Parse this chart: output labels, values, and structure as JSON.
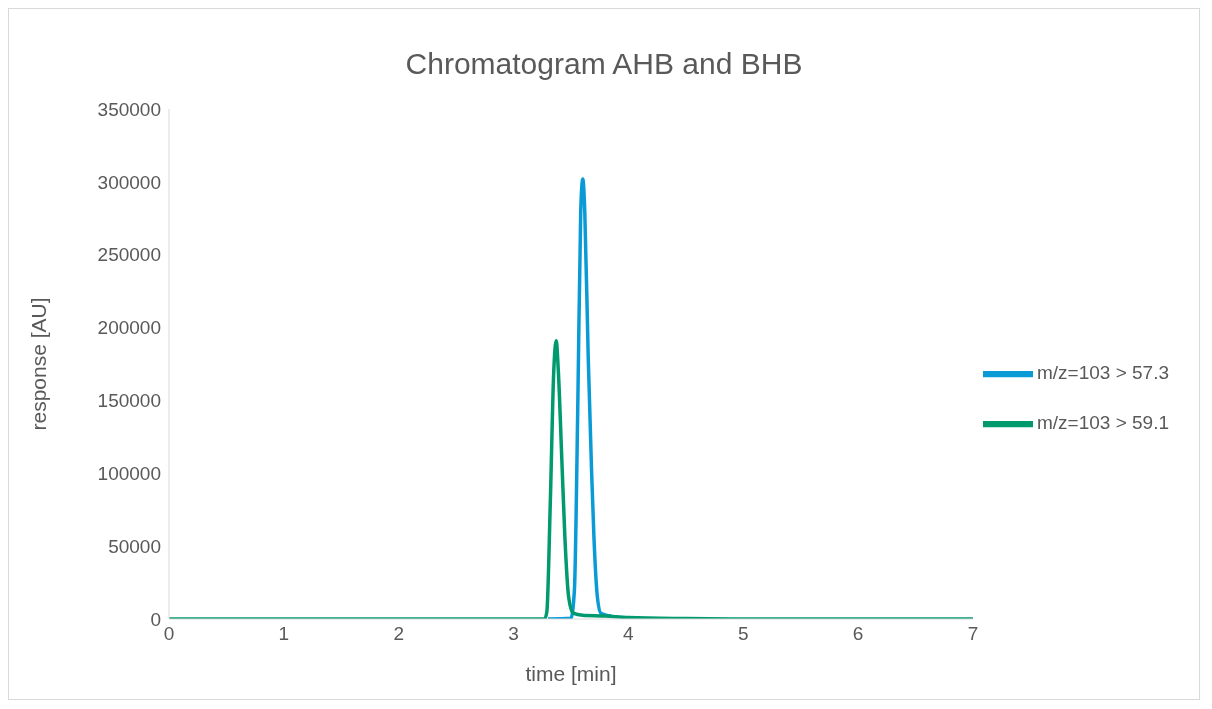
{
  "chart_data": {
    "type": "line",
    "title": "Chromatogram AHB and BHB",
    "xlabel": "time [min]",
    "ylabel": "response [AU]",
    "xlim": [
      0,
      7
    ],
    "xticks": [
      0,
      1,
      2,
      3,
      4,
      5,
      6,
      7
    ],
    "ylim": [
      0,
      350000
    ],
    "yticks": [
      0,
      50000,
      100000,
      150000,
      200000,
      250000,
      300000,
      350000
    ],
    "grid": false,
    "legend": "right",
    "marker": "none",
    "line_style": "solid",
    "series": [
      {
        "name": "m/z=103 > 57.3",
        "color": "#0a9bd7",
        "x": [
          3.3,
          3.5,
          3.53,
          3.56,
          3.585,
          3.603,
          3.62,
          3.65,
          3.68,
          3.7,
          3.73,
          3.76,
          3.85
        ],
        "values": [
          0,
          500,
          20000,
          150000,
          280000,
          302000,
          280000,
          180000,
          100000,
          56000,
          15000,
          4000,
          2000
        ]
      },
      {
        "name": "m/z=103 > 59.1",
        "color": "#009a6e",
        "x": [
          0,
          1,
          2,
          3,
          3.27,
          3.29,
          3.32,
          3.35,
          3.371,
          3.39,
          3.42,
          3.447,
          3.48,
          3.52,
          3.6,
          3.8,
          4,
          4.5,
          5,
          6,
          7
        ],
        "values": [
          0,
          0,
          0,
          0,
          0,
          5000,
          80000,
          170000,
          191000,
          170000,
          110000,
          56000,
          15000,
          4000,
          2500,
          2000,
          1000,
          300,
          0,
          0,
          0
        ]
      }
    ]
  }
}
